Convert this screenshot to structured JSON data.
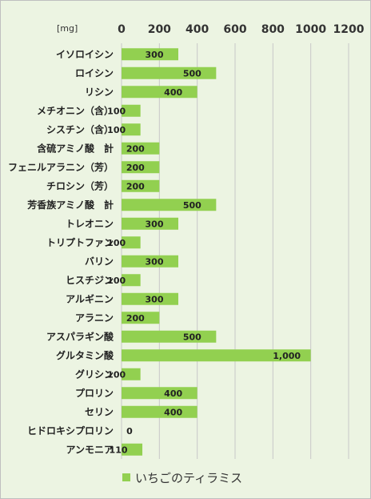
{
  "chart_data": {
    "type": "bar",
    "orientation": "horizontal",
    "unit_label": "[mg]",
    "xlim": [
      0,
      1200
    ],
    "ticks": [
      0,
      200,
      400,
      600,
      800,
      1000,
      1200
    ],
    "tick_labels": [
      "0",
      "200",
      "400",
      "600",
      "800",
      "1000",
      "1200"
    ],
    "grid": true,
    "legend_position": "bottom",
    "categories": [
      "イソロイシン",
      "ロイシン",
      "リシン",
      "メチオニン（含）",
      "シスチン（含）",
      "含硫アミノ酸　計",
      "フェニルアラニン（芳）",
      "チロシン（芳）",
      "芳香族アミノ酸　計",
      "トレオニン",
      "トリプトファン",
      "バリン",
      "ヒスチジン",
      "アルギニン",
      "アラニン",
      "アスパラギン酸",
      "グルタミン酸",
      "グリシン",
      "プロリン",
      "セリン",
      "ヒドロキシプロリン",
      "アンモニア"
    ],
    "series": [
      {
        "name": "いちごのティラミス",
        "color": "#92d050",
        "values": [
          300,
          500,
          400,
          100,
          100,
          200,
          200,
          200,
          500,
          300,
          100,
          300,
          100,
          300,
          200,
          500,
          1000,
          100,
          400,
          400,
          0,
          110
        ],
        "data_labels": [
          "300",
          "500",
          "400",
          "100",
          "100",
          "200",
          "200",
          "200",
          "500",
          "300",
          "100",
          "300",
          "100",
          "300",
          "200",
          "500",
          "1,000",
          "100",
          "400",
          "400",
          "0",
          "110"
        ]
      }
    ]
  }
}
